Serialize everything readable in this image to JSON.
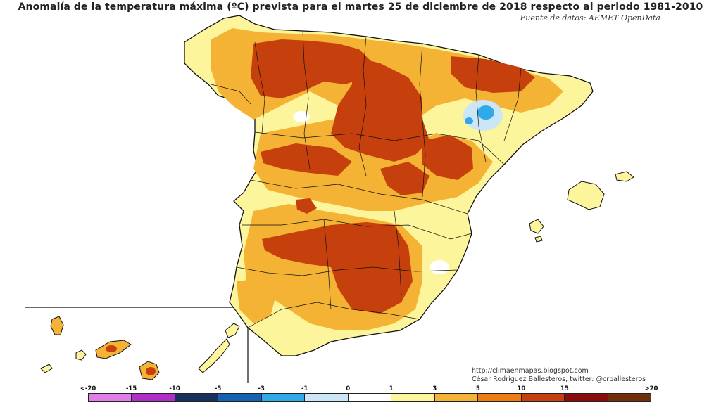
{
  "title": "Anomalía de la temperatura máxima (ºC) prevista para el martes 25 de diciembre de 2018 respecto al periodo 1981-2010",
  "source": "Fuente de datos: AEMET OpenData",
  "credits": {
    "url": "http://climaenmapas.blogspot.com",
    "author": "César Rodríguez Ballesteros, twitter: @crballesteros"
  },
  "legend": {
    "labels": [
      "<-20",
      "-15",
      "-10",
      "-5",
      "-3",
      "-1",
      "0",
      "1",
      "3",
      "5",
      "10",
      "15",
      ">20"
    ],
    "colors": [
      "#e27ee8",
      "#b12fc9",
      "#16315c",
      "#1462b4",
      "#2fa9e8",
      "#cbe6f6",
      "#ffffff",
      "#fdf59b",
      "#f4b335",
      "#ef7a12",
      "#c6400e",
      "#8a0d09",
      "#6e2f0a"
    ]
  }
}
